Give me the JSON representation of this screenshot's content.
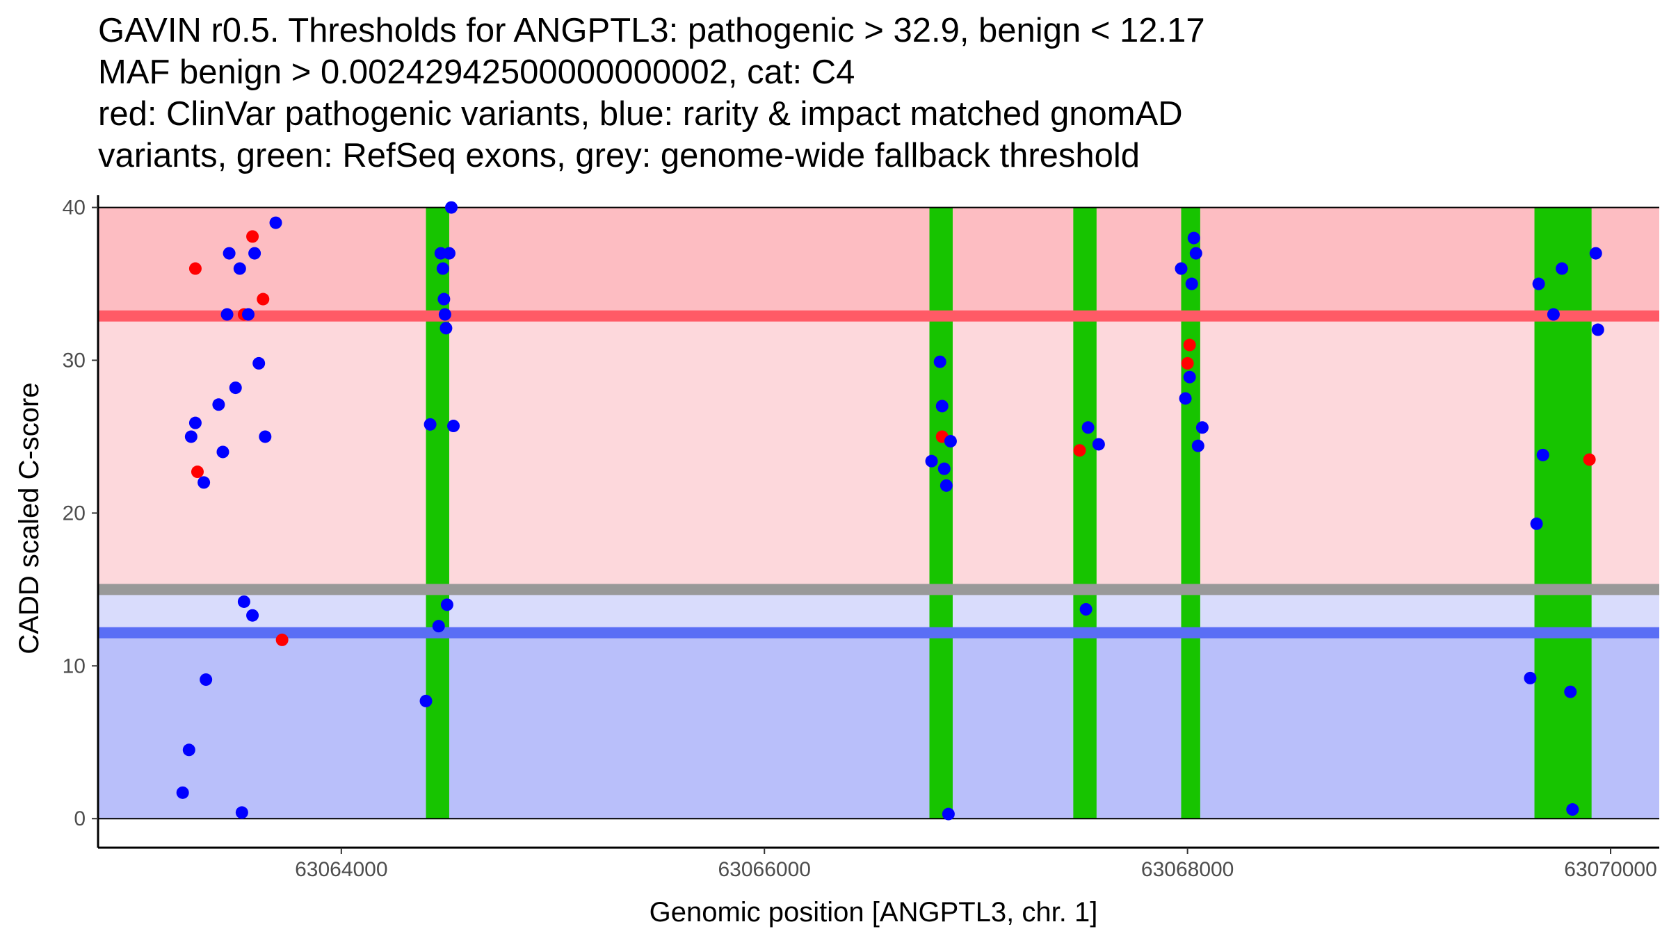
{
  "chart_data": {
    "type": "scatter",
    "title_lines": [
      "GAVIN r0.5. Thresholds for ANGPTL3: pathogenic > 32.9, benign < 12.17",
      "MAF benign > 0.00242942500000000002, cat: C4",
      "red: ClinVar pathogenic variants, blue: rarity & impact matched gnomAD",
      "variants, green: RefSeq exons, grey: genome-wide fallback threshold"
    ],
    "xlabel": "Genomic position [ANGPTL3, chr. 1]",
    "ylabel": "CADD scaled C-score",
    "xlim": [
      63062850,
      63070230
    ],
    "ylim": [
      -1.9,
      40.8
    ],
    "x_ticks": [
      {
        "value": 63064000,
        "label": "63064000"
      },
      {
        "value": 63066000,
        "label": "63066000"
      },
      {
        "value": 63068000,
        "label": "63068000"
      },
      {
        "value": 63070000,
        "label": "63070000"
      }
    ],
    "y_ticks": [
      {
        "value": 0,
        "label": "0"
      },
      {
        "value": 10,
        "label": "10"
      },
      {
        "value": 20,
        "label": "20"
      },
      {
        "value": 30,
        "label": "30"
      },
      {
        "value": 40,
        "label": "40"
      }
    ],
    "thresholds": {
      "pathogenic": 32.9,
      "benign": 12.17,
      "fallback": 15.0
    },
    "colors": {
      "pathogenic_zone": "#fdbdc2",
      "mid_zone": "#fdd8dc",
      "fallback_zone": "#d9dcfc",
      "benign_zone": "#b9bffa",
      "pathogenic_line": "#ff5a66",
      "benign_line": "#5a6ef5",
      "fallback_line": "#999999",
      "exon": "#17c400",
      "clinvar": "#ff0000",
      "gnomad": "#0000ff"
    },
    "exons": [
      {
        "start": 63064400,
        "end": 63064510
      },
      {
        "start": 63066780,
        "end": 63066890
      },
      {
        "start": 63067460,
        "end": 63067570
      },
      {
        "start": 63067970,
        "end": 63068060
      },
      {
        "start": 63069640,
        "end": 63069910
      }
    ],
    "series": [
      {
        "name": "ClinVar pathogenic variants",
        "color": "#ff0000",
        "points": [
          [
            63063310,
            36
          ],
          [
            63063320,
            22.7
          ],
          [
            63063540,
            33
          ],
          [
            63063580,
            38.1
          ],
          [
            63063630,
            34
          ],
          [
            63063720,
            11.7
          ],
          [
            63066840,
            25
          ],
          [
            63067490,
            24.1
          ],
          [
            63068000,
            29.8
          ],
          [
            63068010,
            31
          ],
          [
            63069900,
            23.5
          ]
        ]
      },
      {
        "name": "gnomAD rarity & impact matched variants",
        "color": "#0000ff",
        "points": [
          [
            63063250,
            1.7
          ],
          [
            63063280,
            4.5
          ],
          [
            63063290,
            25
          ],
          [
            63063310,
            25.9
          ],
          [
            63063350,
            22
          ],
          [
            63063360,
            9.1
          ],
          [
            63063420,
            27.1
          ],
          [
            63063440,
            24
          ],
          [
            63063460,
            33
          ],
          [
            63063470,
            37
          ],
          [
            63063500,
            28.2
          ],
          [
            63063520,
            36
          ],
          [
            63063530,
            0.4
          ],
          [
            63063540,
            14.2
          ],
          [
            63063560,
            33
          ],
          [
            63063580,
            13.3
          ],
          [
            63063590,
            37
          ],
          [
            63063610,
            29.8
          ],
          [
            63063640,
            25
          ],
          [
            63063690,
            39
          ],
          [
            63064400,
            7.7
          ],
          [
            63064420,
            25.8
          ],
          [
            63064460,
            12.6
          ],
          [
            63064470,
            37
          ],
          [
            63064480,
            36
          ],
          [
            63064485,
            34
          ],
          [
            63064490,
            33
          ],
          [
            63064495,
            32.1
          ],
          [
            63064500,
            14
          ],
          [
            63064510,
            37
          ],
          [
            63064520,
            40
          ],
          [
            63064530,
            25.7
          ],
          [
            63066790,
            23.4
          ],
          [
            63066830,
            29.9
          ],
          [
            63066840,
            27
          ],
          [
            63066850,
            22.9
          ],
          [
            63066860,
            21.8
          ],
          [
            63066870,
            0.3
          ],
          [
            63066880,
            24.7
          ],
          [
            63067520,
            13.7
          ],
          [
            63067530,
            25.6
          ],
          [
            63067580,
            24.5
          ],
          [
            63067970,
            36
          ],
          [
            63067990,
            27.5
          ],
          [
            63068010,
            28.9
          ],
          [
            63068020,
            35
          ],
          [
            63068030,
            38
          ],
          [
            63068040,
            37
          ],
          [
            63068050,
            24.4
          ],
          [
            63068070,
            25.6
          ],
          [
            63069620,
            9.2
          ],
          [
            63069650,
            19.3
          ],
          [
            63069660,
            35
          ],
          [
            63069680,
            23.8
          ],
          [
            63069730,
            33
          ],
          [
            63069770,
            36
          ],
          [
            63069810,
            8.3
          ],
          [
            63069820,
            0.6
          ],
          [
            63069930,
            37
          ],
          [
            63069940,
            32
          ]
        ]
      }
    ]
  }
}
